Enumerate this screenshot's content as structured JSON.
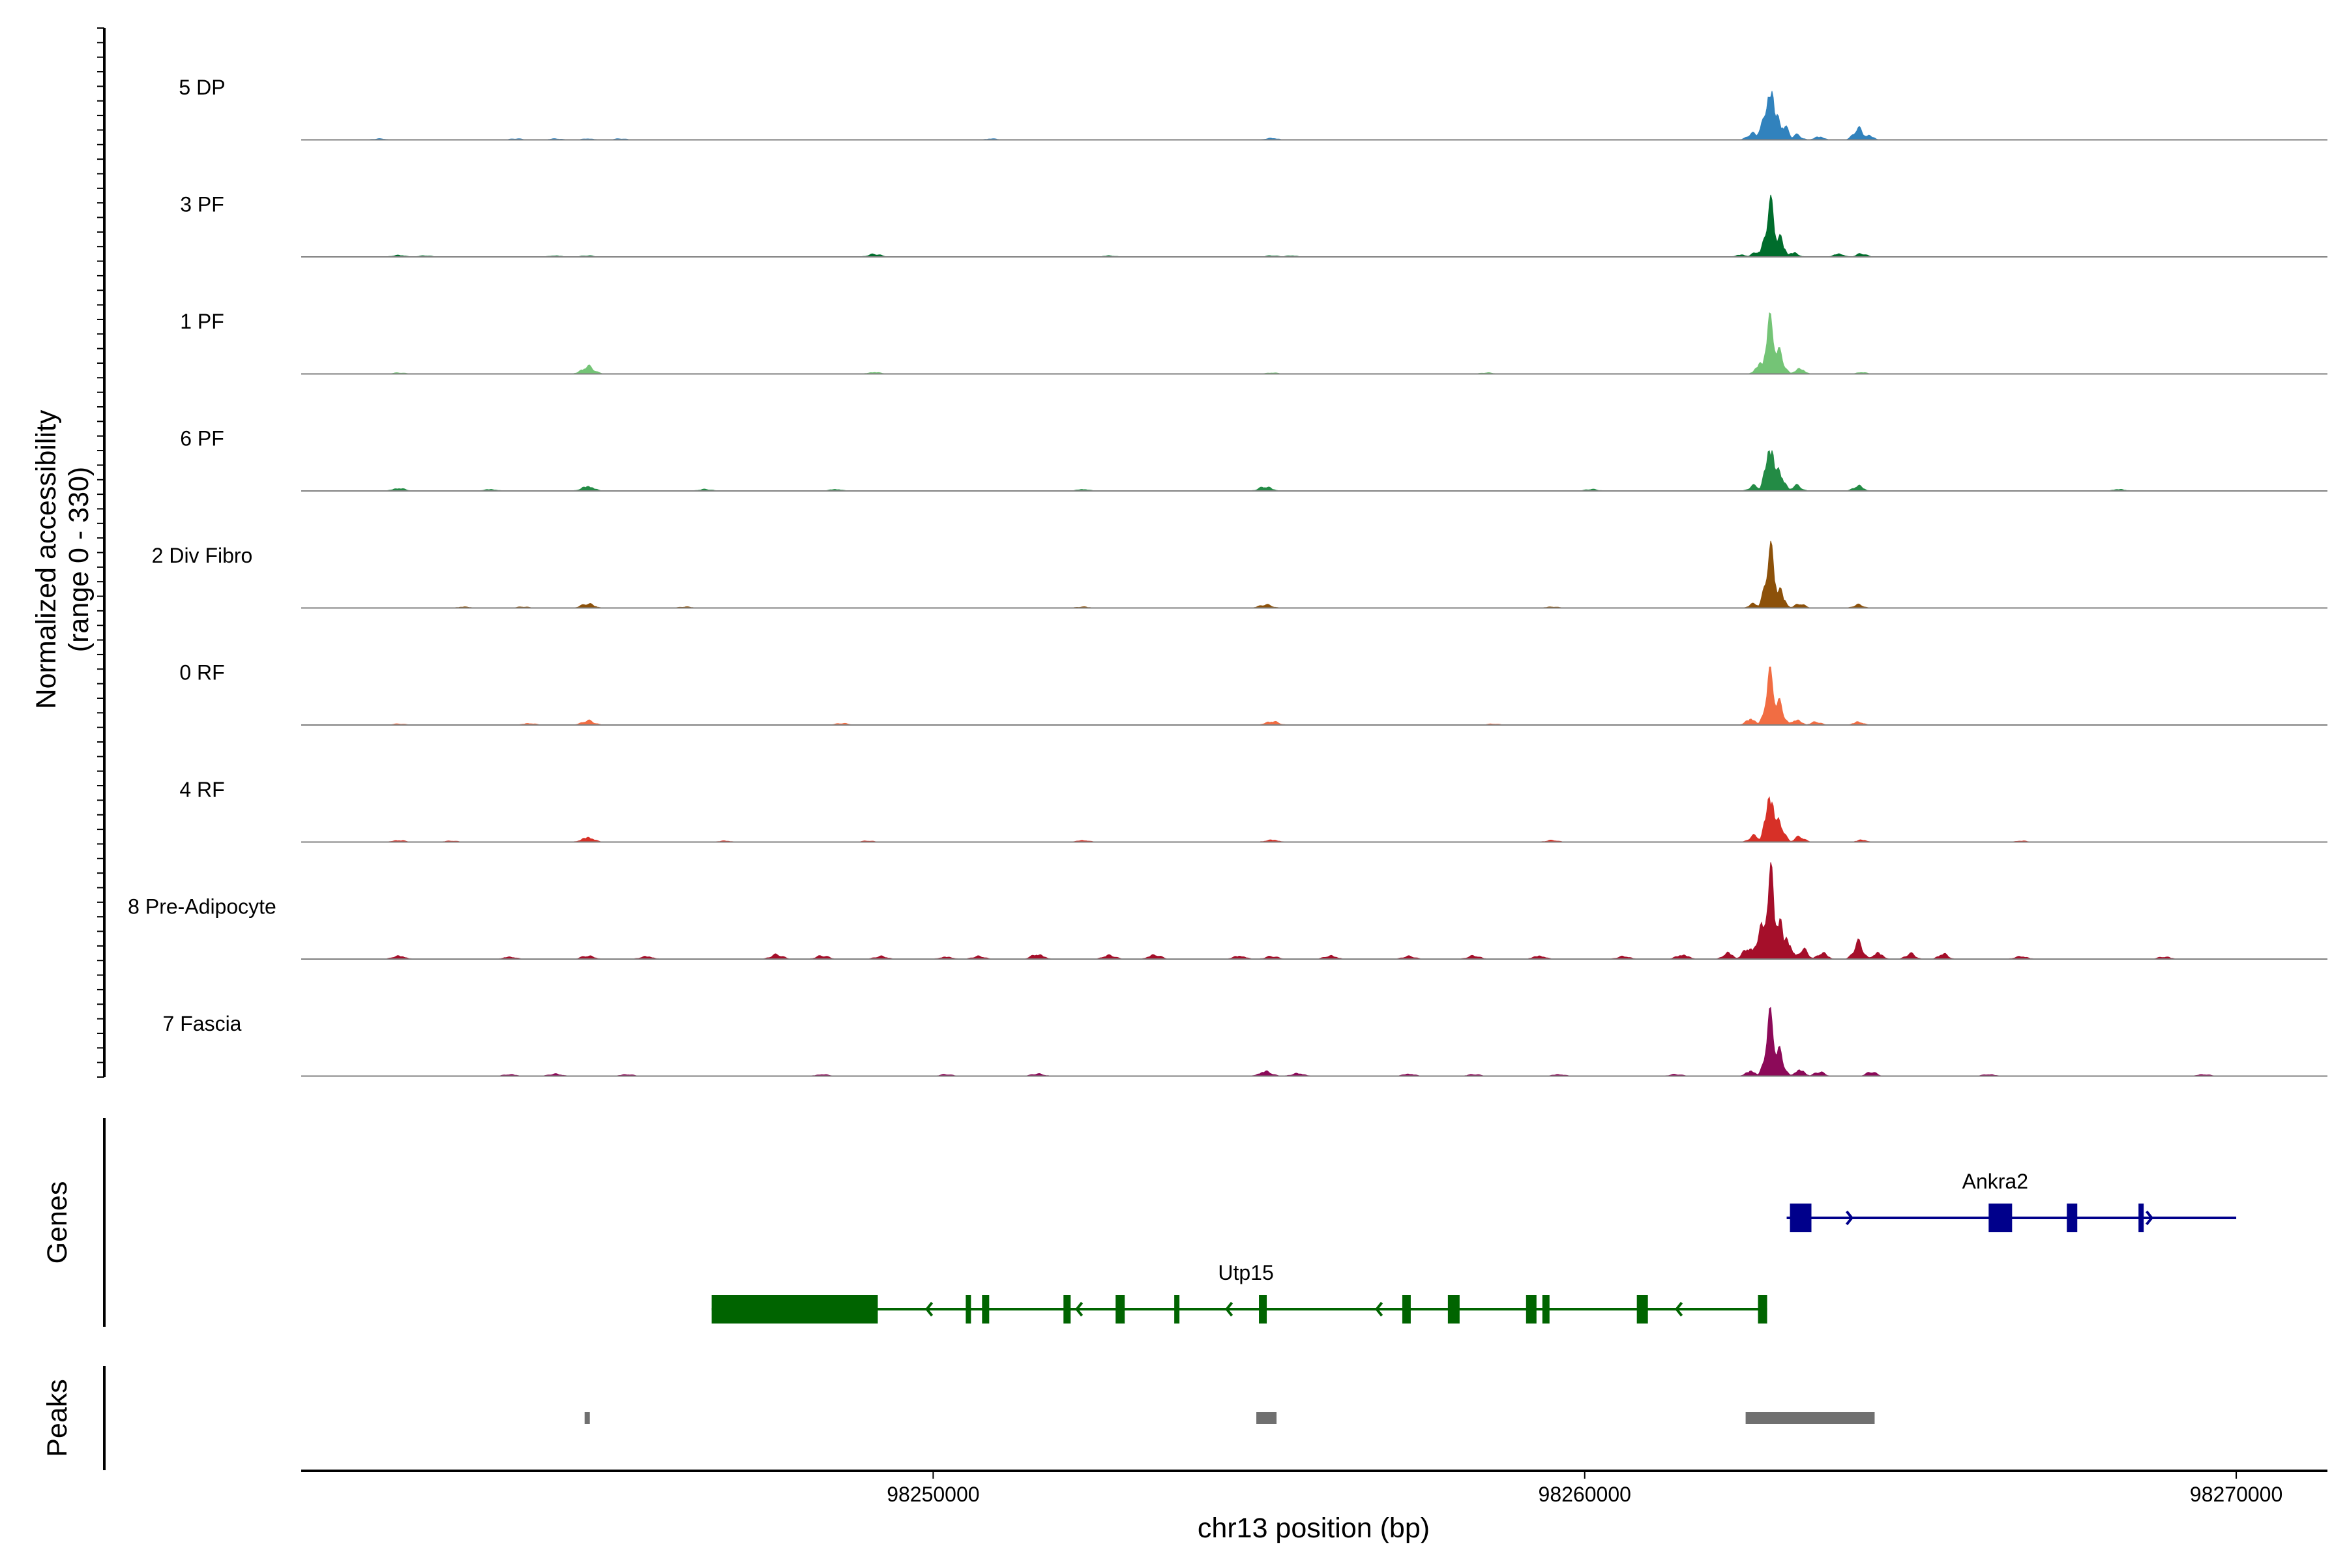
{
  "chart_data": [
    {
      "type": "area",
      "panel": "coverage",
      "ylabel": "Normalized accessibility\n(range 0 - 330)",
      "ylim": [
        0,
        330
      ],
      "x_range": [
        98240300,
        98271400
      ],
      "tracks": [
        {
          "name": "5 DP",
          "color": "#3182bd",
          "peaks": [
            [
              98262570,
              12
            ],
            [
              98262750,
              35
            ],
            [
              98262850,
              100
            ],
            [
              98262950,
              45
            ],
            [
              98263050,
              28
            ],
            [
              98263250,
              9
            ],
            [
              98263600,
              6
            ],
            [
              98264200,
              22
            ],
            [
              98264350,
              9
            ]
          ],
          "noise": [
            [
              98241500,
              2
            ],
            [
              98243600,
              2
            ],
            [
              98244200,
              2
            ],
            [
              98244700,
              2
            ],
            [
              98245200,
              2
            ],
            [
              98250900,
              2
            ],
            [
              98255200,
              3
            ]
          ]
        },
        {
          "name": "3 PF",
          "color": "#006d2c",
          "peaks": [
            [
              98262400,
              4
            ],
            [
              98262650,
              10
            ],
            [
              98262850,
              94
            ],
            [
              98262980,
              40
            ],
            [
              98263200,
              8
            ],
            [
              98263900,
              6
            ],
            [
              98264250,
              6
            ]
          ],
          "noise": [
            [
              98241800,
              3
            ],
            [
              98242200,
              2
            ],
            [
              98244200,
              2
            ],
            [
              98244700,
              2
            ],
            [
              98249100,
              5
            ],
            [
              98252700,
              2
            ],
            [
              98255200,
              2
            ],
            [
              98255500,
              2
            ]
          ]
        },
        {
          "name": "1 PF",
          "color": "#74c476",
          "peaks": [
            [
              98262700,
              20
            ],
            [
              98262850,
              96
            ],
            [
              98262980,
              40
            ],
            [
              98263300,
              10
            ],
            [
              98264250,
              3
            ]
          ],
          "noise": [
            [
              98241800,
              2
            ],
            [
              98244700,
              14
            ],
            [
              98249100,
              3
            ],
            [
              98255200,
              2
            ],
            [
              98258500,
              2
            ]
          ]
        },
        {
          "name": "6 PF",
          "color": "#238b45",
          "peaks": [
            [
              98262600,
              10
            ],
            [
              98262850,
              88
            ],
            [
              98262980,
              40
            ],
            [
              98263250,
              10
            ],
            [
              98264200,
              10
            ]
          ],
          "noise": [
            [
              98241800,
              5
            ],
            [
              98243200,
              3
            ],
            [
              98244700,
              9
            ],
            [
              98246500,
              3
            ],
            [
              98248500,
              3
            ],
            [
              98252300,
              3
            ],
            [
              98255100,
              8
            ],
            [
              98260100,
              3
            ],
            [
              98268200,
              3
            ]
          ]
        },
        {
          "name": "2 Div Fibro",
          "color": "#8c510a",
          "peaks": [
            [
              98262600,
              8
            ],
            [
              98262850,
              104
            ],
            [
              98262980,
              38
            ],
            [
              98263300,
              8
            ],
            [
              98264200,
              6
            ]
          ],
          "noise": [
            [
              98242800,
              2
            ],
            [
              98243700,
              2
            ],
            [
              98244700,
              8
            ],
            [
              98246200,
              2
            ],
            [
              98252300,
              2
            ],
            [
              98255100,
              6
            ],
            [
              98259500,
              2
            ]
          ]
        },
        {
          "name": "0 RF",
          "color": "#f16d43",
          "peaks": [
            [
              98262550,
              12
            ],
            [
              98262850,
              90
            ],
            [
              98262980,
              40
            ],
            [
              98263250,
              10
            ],
            [
              98263550,
              6
            ],
            [
              98264200,
              6
            ]
          ],
          "noise": [
            [
              98241800,
              2
            ],
            [
              98243800,
              3
            ],
            [
              98244700,
              8
            ],
            [
              98248600,
              3
            ],
            [
              98255200,
              7
            ],
            [
              98258600,
              2
            ]
          ]
        },
        {
          "name": "4 RF",
          "color": "#d73027",
          "peaks": [
            [
              98262600,
              12
            ],
            [
              98262850,
              92
            ],
            [
              98262980,
              40
            ],
            [
              98263300,
              10
            ],
            [
              98264250,
              4
            ]
          ],
          "noise": [
            [
              98241800,
              3
            ],
            [
              98242600,
              2
            ],
            [
              98244700,
              9
            ],
            [
              98246800,
              2
            ],
            [
              98249000,
              2
            ],
            [
              98252300,
              3
            ],
            [
              98255200,
              4
            ],
            [
              98259500,
              3
            ],
            [
              98266700,
              2
            ]
          ]
        },
        {
          "name": "8 Pre-Adipocyte",
          "color": "#a50f2a",
          "peaks": [
            [
              98262200,
              12
            ],
            [
              98262500,
              22
            ],
            [
              98262700,
              55
            ],
            [
              98262850,
              155
            ],
            [
              98262980,
              80
            ],
            [
              98263100,
              40
            ],
            [
              98263350,
              18
            ],
            [
              98263650,
              12
            ],
            [
              98264200,
              30
            ],
            [
              98264500,
              12
            ],
            [
              98265000,
              10
            ],
            [
              98265500,
              10
            ]
          ],
          "noise": [
            [
              98241800,
              6
            ],
            [
              98243500,
              4
            ],
            [
              98244700,
              6
            ],
            [
              98245600,
              5
            ],
            [
              98247600,
              8
            ],
            [
              98248300,
              6
            ],
            [
              98249200,
              5
            ],
            [
              98250200,
              4
            ],
            [
              98250700,
              5
            ],
            [
              98251600,
              9
            ],
            [
              98252700,
              7
            ],
            [
              98253400,
              8
            ],
            [
              98254700,
              6
            ],
            [
              98255200,
              5
            ],
            [
              98256100,
              6
            ],
            [
              98257300,
              5
            ],
            [
              98258300,
              6
            ],
            [
              98259300,
              6
            ],
            [
              98260600,
              5
            ],
            [
              98261500,
              8
            ],
            [
              98266700,
              5
            ],
            [
              98268900,
              4
            ]
          ]
        },
        {
          "name": "7 Fascia",
          "color": "#8c0a59",
          "peaks": [
            [
              98262550,
              10
            ],
            [
              98262850,
              104
            ],
            [
              98262980,
              45
            ],
            [
              98263300,
              12
            ],
            [
              98263600,
              8
            ],
            [
              98264400,
              8
            ]
          ],
          "noise": [
            [
              98243500,
              3
            ],
            [
              98244200,
              4
            ],
            [
              98245300,
              3
            ],
            [
              98248300,
              3
            ],
            [
              98250200,
              3
            ],
            [
              98251600,
              4
            ],
            [
              98255100,
              9
            ],
            [
              98255600,
              5
            ],
            [
              98257300,
              4
            ],
            [
              98258300,
              3
            ],
            [
              98259600,
              3
            ],
            [
              98261400,
              3
            ],
            [
              98266200,
              3
            ],
            [
              98269500,
              3
            ]
          ]
        }
      ]
    },
    {
      "type": "gene-track",
      "panel": "genes",
      "ylabel": "Genes",
      "genes": [
        {
          "name": "Ankra2",
          "strand": "+",
          "start": 98263100,
          "end": 98270000,
          "color": "#00008b",
          "exons": [
            [
              98263150,
              98263480
            ],
            [
              98266200,
              98266560
            ],
            [
              98267400,
              98267560
            ],
            [
              98268500,
              98268560
            ]
          ]
        },
        {
          "name": "Utp15",
          "strand": "-",
          "start": 98246600,
          "end": 98262800,
          "color": "#006400",
          "exons": [
            [
              98246600,
              98249150
            ],
            [
              98250500,
              98250560
            ],
            [
              98250750,
              98250860
            ],
            [
              98252000,
              98252110
            ],
            [
              98252800,
              98252940
            ],
            [
              98253700,
              98253760
            ],
            [
              98255000,
              98255120
            ],
            [
              98257200,
              98257330
            ],
            [
              98257900,
              98258080
            ],
            [
              98259100,
              98259260
            ],
            [
              98259350,
              98259460
            ],
            [
              98260800,
              98260970
            ],
            [
              98262660,
              98262800
            ]
          ]
        }
      ]
    },
    {
      "type": "range-track",
      "panel": "peaks",
      "ylabel": "Peaks",
      "color": "#707070",
      "ranges": [
        [
          98244650,
          98244720
        ],
        [
          98254960,
          98255270
        ],
        [
          98262470,
          98264450
        ]
      ]
    }
  ],
  "xaxis": {
    "label": "chr13 position (bp)",
    "ticks": [
      98250000,
      98260000,
      98270000
    ],
    "tick_labels": [
      "98250000",
      "98260000",
      "98270000"
    ]
  }
}
